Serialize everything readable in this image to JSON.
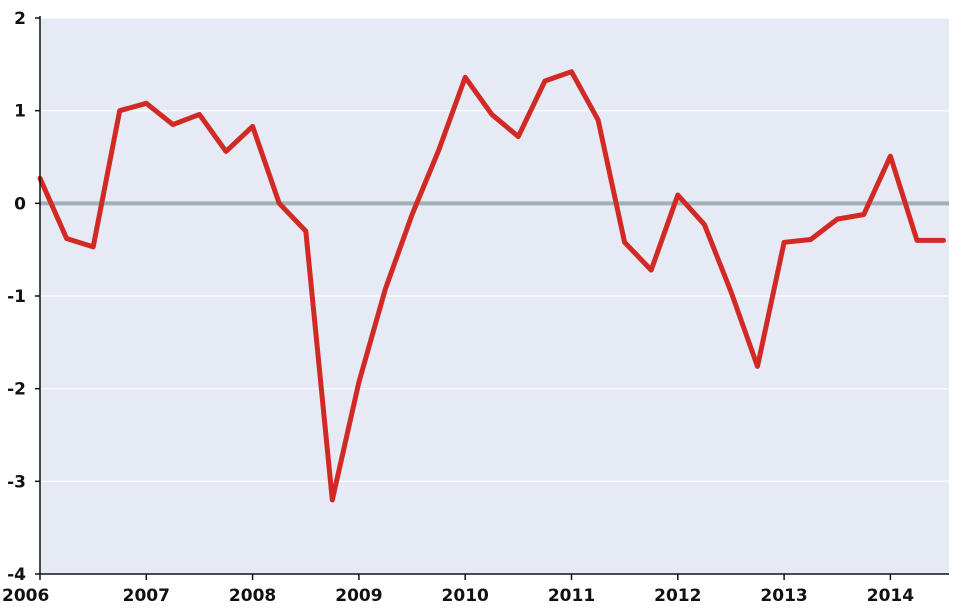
{
  "chart_data": {
    "type": "line",
    "title": "",
    "xlabel": "",
    "ylabel": "",
    "xlim": [
      2006,
      2014.5
    ],
    "ylim": [
      -4,
      2
    ],
    "x_ticks": [
      "2006",
      "2007",
      "2008",
      "2009",
      "2010",
      "2011",
      "2012",
      "2013",
      "2014"
    ],
    "y_ticks": [
      "-4",
      "-3",
      "-2",
      "-1",
      "0",
      "1",
      "2"
    ],
    "grid": true,
    "legend": "none",
    "colors": {
      "plot_background": "#e6eaf4",
      "gridline": "#ffffff",
      "zero_line": "#9fb0b8",
      "series_line": "#d12a24",
      "axis": "#111111"
    },
    "series": [
      {
        "x": [
          2006.0,
          2006.25,
          2006.5,
          2006.75,
          2007.0,
          2007.25,
          2007.5,
          2007.75,
          2008.0,
          2008.25,
          2008.5,
          2008.75,
          2009.0,
          2009.25,
          2009.5,
          2009.75,
          2010.0,
          2010.25,
          2010.5,
          2010.75,
          2011.0,
          2011.25,
          2011.5,
          2011.75,
          2012.0,
          2012.25,
          2012.5,
          2012.75,
          2013.0,
          2013.25,
          2013.5,
          2013.75,
          2014.0,
          2014.25,
          2014.5
        ],
        "values": [
          0.27,
          -0.38,
          -0.47,
          1.0,
          1.08,
          0.85,
          0.96,
          0.56,
          0.83,
          0.0,
          -0.3,
          -3.2,
          -1.93,
          -0.92,
          -0.12,
          0.57,
          1.36,
          0.96,
          0.72,
          1.32,
          1.42,
          0.9,
          -0.42,
          -0.72,
          0.09,
          -0.23,
          -0.95,
          -1.76,
          -0.42,
          -0.39,
          -0.17,
          -0.12,
          0.51,
          -0.4,
          -0.4
        ]
      }
    ]
  }
}
